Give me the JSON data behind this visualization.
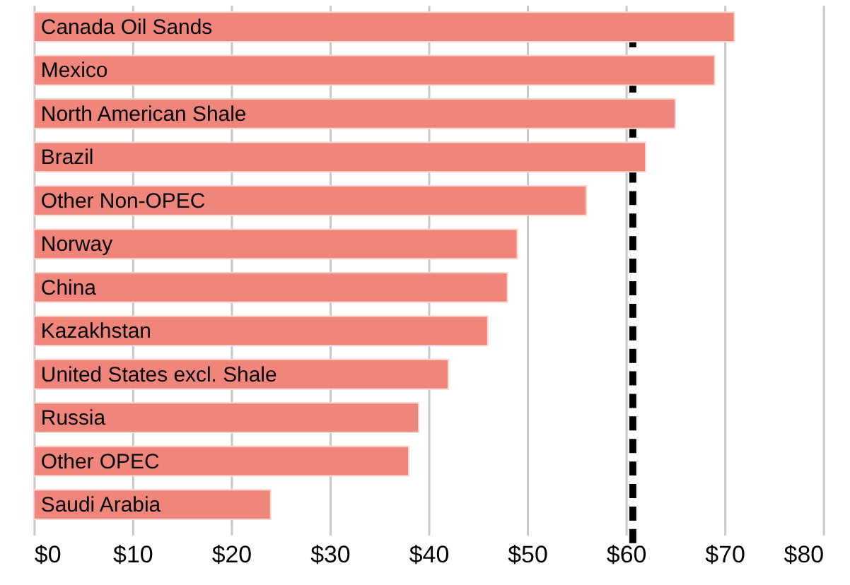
{
  "chart_data": {
    "type": "bar",
    "orientation": "horizontal",
    "categories": [
      "Canada Oil Sands",
      "Mexico",
      "North American Shale",
      "Brazil",
      "Other Non-OPEC",
      "Norway",
      "China",
      "Kazakhstan",
      "United States excl. Shale",
      "Russia",
      "Other OPEC",
      "Saudi Arabia"
    ],
    "values": [
      71,
      69,
      65,
      62,
      56,
      49,
      48,
      46,
      42,
      39,
      38,
      24
    ],
    "color": "#ef857b",
    "xlim": [
      0,
      80
    ],
    "xticks": [
      {
        "value": 0,
        "label": "$0"
      },
      {
        "value": 10,
        "label": "$10"
      },
      {
        "value": 20,
        "label": "$20"
      },
      {
        "value": 30,
        "label": "$30"
      },
      {
        "value": 40,
        "label": "$40"
      },
      {
        "value": 50,
        "label": "$50"
      },
      {
        "value": 60,
        "label": "$60"
      },
      {
        "value": 70,
        "label": "$70"
      },
      {
        "value": 80,
        "label": "$80"
      }
    ],
    "grid": "x",
    "tick_labels": "x",
    "ref_lines": [
      {
        "axis": "x",
        "value": 60.7,
        "color": "#000000",
        "line_style": "dashed"
      }
    ]
  }
}
